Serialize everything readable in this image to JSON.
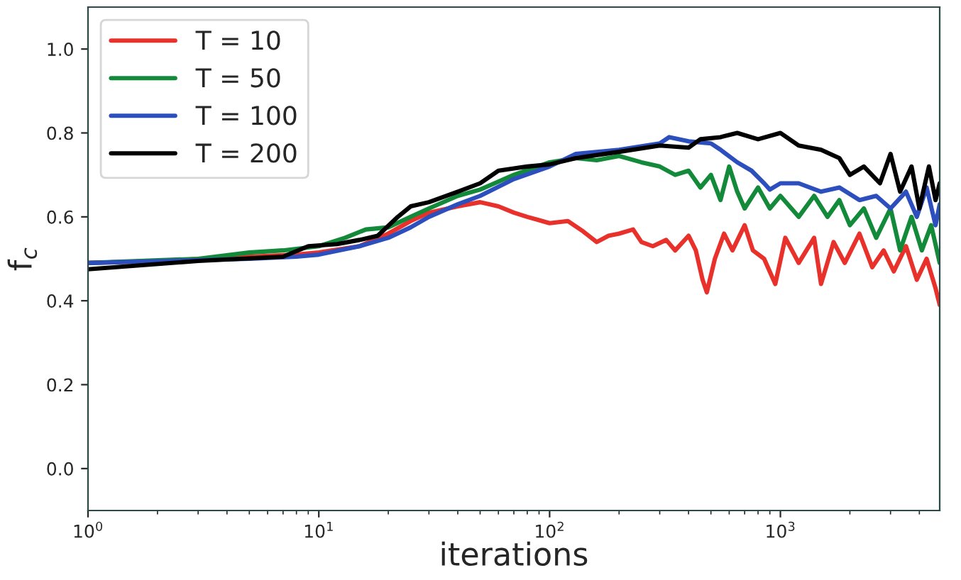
{
  "chart_data": {
    "type": "line",
    "xlabel": "iterations",
    "ylabel": "f$_{c}$",
    "log": "x",
    "grid": false,
    "legend": "top left",
    "line_style": "solid",
    "marker": "none",
    "xlim": [
      1,
      4900
    ],
    "ylim": [
      -0.1,
      1.1
    ],
    "xticks": [
      {
        "value": 1,
        "label": "10$^{0}$"
      },
      {
        "value": 10,
        "label": "10$^{1}$"
      },
      {
        "value": 100,
        "label": "10$^{2}$"
      },
      {
        "value": 1000,
        "label": "10$^{3}$"
      }
    ],
    "yticks": [
      {
        "value": 0,
        "label": "0.0"
      },
      {
        "value": 0.2,
        "label": "0.2"
      },
      {
        "value": 0.4,
        "label": "0.4"
      },
      {
        "value": 0.6,
        "label": "0.6"
      },
      {
        "value": 0.8,
        "label": "0.8"
      },
      {
        "value": 1,
        "label": "1.0"
      }
    ],
    "series": [
      {
        "name": "T = 10",
        "color": "#e8312a",
        "x": [
          1,
          2,
          5,
          8,
          10,
          15,
          20,
          25,
          30,
          40,
          50,
          60,
          70,
          80,
          100,
          120,
          140,
          160,
          180,
          200,
          230,
          250,
          280,
          320,
          350,
          400,
          430,
          460,
          480,
          520,
          570,
          620,
          700,
          760,
          850,
          950,
          1050,
          1200,
          1400,
          1500,
          1700,
          1900,
          2200,
          2500,
          2800,
          3100,
          3500,
          3900,
          4300,
          4700,
          4900
        ],
        "values": [
          0.49,
          0.495,
          0.505,
          0.51,
          0.515,
          0.53,
          0.56,
          0.59,
          0.61,
          0.625,
          0.635,
          0.625,
          0.61,
          0.6,
          0.585,
          0.59,
          0.565,
          0.54,
          0.555,
          0.56,
          0.57,
          0.54,
          0.53,
          0.545,
          0.52,
          0.555,
          0.52,
          0.45,
          0.42,
          0.5,
          0.56,
          0.52,
          0.58,
          0.52,
          0.5,
          0.44,
          0.55,
          0.49,
          0.55,
          0.44,
          0.54,
          0.49,
          0.56,
          0.48,
          0.52,
          0.47,
          0.53,
          0.45,
          0.5,
          0.43,
          0.39
        ]
      },
      {
        "name": "T = 50",
        "color": "#138a3a",
        "x": [
          1,
          3,
          5,
          7,
          10,
          13,
          16,
          20,
          25,
          30,
          40,
          50,
          70,
          100,
          130,
          160,
          200,
          250,
          300,
          350,
          400,
          450,
          500,
          550,
          600,
          650,
          700,
          800,
          900,
          1000,
          1200,
          1400,
          1600,
          1800,
          2000,
          2300,
          2600,
          3000,
          3300,
          3700,
          4100,
          4500,
          4900
        ],
        "values": [
          0.49,
          0.5,
          0.515,
          0.52,
          0.53,
          0.55,
          0.57,
          0.575,
          0.6,
          0.62,
          0.65,
          0.665,
          0.7,
          0.73,
          0.74,
          0.735,
          0.745,
          0.73,
          0.72,
          0.7,
          0.71,
          0.67,
          0.7,
          0.64,
          0.72,
          0.66,
          0.62,
          0.67,
          0.62,
          0.65,
          0.6,
          0.65,
          0.6,
          0.64,
          0.58,
          0.62,
          0.55,
          0.62,
          0.52,
          0.6,
          0.52,
          0.58,
          0.49
        ]
      },
      {
        "name": "T = 100",
        "color": "#2c4fbd",
        "x": [
          1,
          5,
          8,
          10,
          15,
          20,
          25,
          30,
          40,
          50,
          70,
          100,
          130,
          200,
          300,
          330,
          400,
          500,
          550,
          650,
          750,
          850,
          900,
          1000,
          1200,
          1500,
          1800,
          2200,
          2600,
          3000,
          3500,
          3900,
          4300,
          4700,
          4900
        ],
        "values": [
          0.49,
          0.5,
          0.505,
          0.51,
          0.53,
          0.55,
          0.575,
          0.6,
          0.63,
          0.65,
          0.69,
          0.72,
          0.75,
          0.76,
          0.775,
          0.79,
          0.78,
          0.775,
          0.76,
          0.73,
          0.71,
          0.68,
          0.665,
          0.68,
          0.68,
          0.66,
          0.67,
          0.64,
          0.65,
          0.62,
          0.66,
          0.6,
          0.67,
          0.58,
          0.63
        ]
      },
      {
        "name": "T = 200",
        "color": "#000000",
        "x": [
          1,
          3,
          7,
          9,
          12,
          15,
          18,
          22,
          25,
          30,
          40,
          50,
          60,
          80,
          100,
          130,
          200,
          300,
          400,
          450,
          550,
          650,
          800,
          1000,
          1200,
          1500,
          1800,
          2000,
          2300,
          2700,
          3000,
          3300,
          3700,
          4000,
          4400,
          4700,
          4900
        ],
        "values": [
          0.475,
          0.495,
          0.505,
          0.53,
          0.535,
          0.545,
          0.555,
          0.6,
          0.625,
          0.635,
          0.66,
          0.68,
          0.71,
          0.72,
          0.725,
          0.74,
          0.755,
          0.77,
          0.765,
          0.785,
          0.79,
          0.8,
          0.785,
          0.8,
          0.77,
          0.76,
          0.74,
          0.7,
          0.72,
          0.68,
          0.75,
          0.66,
          0.72,
          0.62,
          0.72,
          0.64,
          0.68
        ]
      }
    ]
  }
}
